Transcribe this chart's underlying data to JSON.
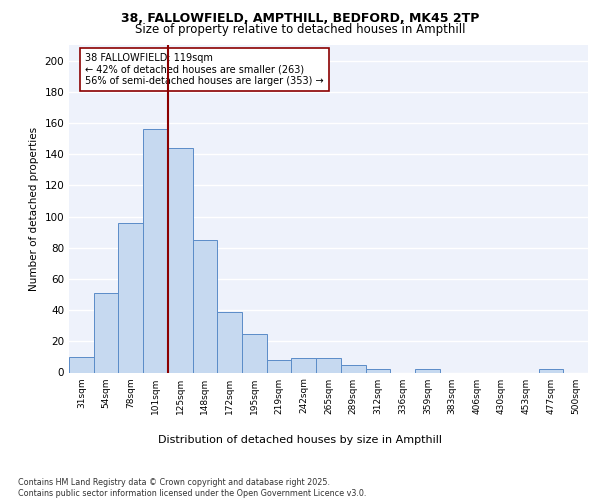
{
  "title_line1": "38, FALLOWFIELD, AMPTHILL, BEDFORD, MK45 2TP",
  "title_line2": "Size of property relative to detached houses in Ampthill",
  "xlabel": "Distribution of detached houses by size in Ampthill",
  "ylabel": "Number of detached properties",
  "bar_labels": [
    "31sqm",
    "54sqm",
    "78sqm",
    "101sqm",
    "125sqm",
    "148sqm",
    "172sqm",
    "195sqm",
    "219sqm",
    "242sqm",
    "265sqm",
    "289sqm",
    "312sqm",
    "336sqm",
    "359sqm",
    "383sqm",
    "406sqm",
    "430sqm",
    "453sqm",
    "477sqm",
    "500sqm"
  ],
  "bar_values": [
    10,
    51,
    96,
    156,
    144,
    85,
    39,
    25,
    8,
    9,
    9,
    5,
    2,
    0,
    2,
    0,
    0,
    0,
    0,
    2,
    0
  ],
  "bar_color": "#c6d9f0",
  "bar_edge_color": "#5b8cc8",
  "vline_color": "#8b0000",
  "annotation_text": "38 FALLOWFIELD: 119sqm\n← 42% of detached houses are smaller (263)\n56% of semi-detached houses are larger (353) →",
  "annotation_box_color": "#ffffff",
  "annotation_box_edge": "#8b0000",
  "ylim": [
    0,
    210
  ],
  "yticks": [
    0,
    20,
    40,
    60,
    80,
    100,
    120,
    140,
    160,
    180,
    200
  ],
  "background_color": "#eef2fb",
  "footer_text": "Contains HM Land Registry data © Crown copyright and database right 2025.\nContains public sector information licensed under the Open Government Licence v3.0.",
  "grid_color": "#ffffff",
  "fig_bg_color": "#ffffff"
}
